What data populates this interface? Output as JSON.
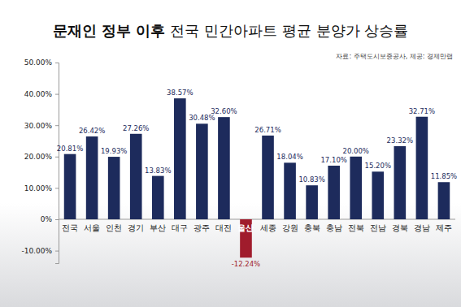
{
  "chart_data": {
    "type": "bar",
    "title": "문재인 정부 이후 전국 민간아파트 평균 분양가 상승률",
    "annotations": [
      "자료: 주택도시보증공사, 제공: 경제만랩"
    ],
    "categories": [
      "전국",
      "서울",
      "인천",
      "경기",
      "부산",
      "대구",
      "광주",
      "대전",
      "울산",
      "세종",
      "강원",
      "충북",
      "충남",
      "전북",
      "전남",
      "경북",
      "경남",
      "제주"
    ],
    "values": [
      20.81,
      26.42,
      19.93,
      27.26,
      13.83,
      38.57,
      30.48,
      32.6,
      -12.24,
      26.71,
      18.04,
      10.83,
      17.1,
      20.0,
      15.2,
      23.32,
      32.71,
      11.85
    ],
    "value_labels": [
      "20.81%",
      "26.42%",
      "19.93%",
      "27.26%",
      "13.83%",
      "38.57%",
      "30.48%",
      "32.60%",
      "-12.24%",
      "26.71%",
      "18.04%",
      "10.83%",
      "17.10%",
      "20.00%",
      "15.20%",
      "23.32%",
      "32.71%",
      "11.85%"
    ],
    "colors": [
      "#1d2b5c",
      "#1d2b5c",
      "#1d2b5c",
      "#1d2b5c",
      "#1d2b5c",
      "#1d2b5c",
      "#1d2b5c",
      "#1d2b5c",
      "#a01c2c",
      "#1d2b5c",
      "#1d2b5c",
      "#1d2b5c",
      "#1d2b5c",
      "#1d2b5c",
      "#1d2b5c",
      "#1d2b5c",
      "#1d2b5c",
      "#1d2b5c"
    ],
    "data_labels": true,
    "ylim": [
      -14,
      50
    ],
    "yticks": [
      {
        "value": -10,
        "label": "-10.00%"
      },
      {
        "value": 0,
        "label": "0%"
      },
      {
        "value": 10,
        "label": "10.00%"
      },
      {
        "value": 20,
        "label": "20.00%"
      },
      {
        "value": 30,
        "label": "30.00%"
      },
      {
        "value": 40,
        "label": "40.00%"
      },
      {
        "value": 50,
        "label": "50.00%"
      }
    ],
    "grid": false
  }
}
